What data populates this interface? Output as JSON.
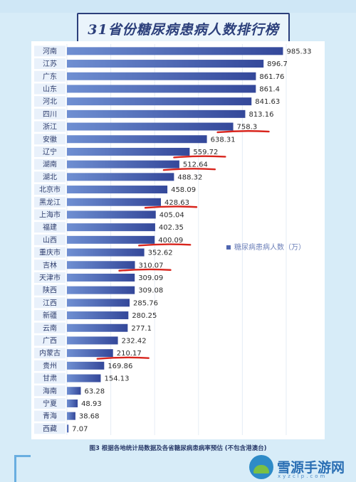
{
  "title": "31省份糖尿病患病人数排行榜",
  "legend_label": "糖尿病患病人数（万）",
  "caption": "图3  根据各地统计局数据及各省糖尿病患病率预估 (不包含港澳台)",
  "watermark": {
    "text": "雪源手游网",
    "sub": "xyzclp.com"
  },
  "colors": {
    "bar_start": "#6f8fd2",
    "bar_end": "#34489a",
    "underline": "#d8251d",
    "title": "#2c3f7b",
    "label_bg": "#e9f1fb"
  },
  "chart_data": {
    "type": "bar",
    "orientation": "horizontal",
    "series": [
      {
        "name": "糖尿病患病人数（万）"
      }
    ],
    "categories": [
      "河南",
      "江苏",
      "广东",
      "山东",
      "河北",
      "四川",
      "浙江",
      "安徽",
      "辽宁",
      "湖南",
      "湖北",
      "北京市",
      "黑龙江",
      "上海市",
      "福建",
      "山西",
      "重庆市",
      "吉林",
      "天津市",
      "陕西",
      "江西",
      "新疆",
      "云南",
      "广西",
      "内蒙古",
      "贵州",
      "甘肃",
      "海南",
      "宁夏",
      "青海",
      "西藏"
    ],
    "values": [
      985.33,
      896.7,
      861.76,
      861.4,
      841.63,
      813.16,
      758.3,
      638.31,
      559.72,
      512.64,
      488.32,
      458.09,
      428.63,
      405.04,
      402.35,
      400.09,
      352.62,
      310.07,
      309.09,
      309.08,
      285.76,
      280.25,
      277.1,
      232.42,
      210.17,
      169.86,
      154.13,
      63.28,
      48.93,
      38.68,
      7.07
    ],
    "value_labels": [
      "985.33",
      "896.7",
      "861.76",
      "861.4",
      "841.63",
      "813.16",
      "758.3",
      "638.31",
      "559.72",
      "512.64",
      "488.32",
      "458.09",
      "428.63",
      "405.04",
      "402.35",
      "400.09",
      "352.62",
      "310.07",
      "309.09",
      "309.08",
      "285.76",
      "280.25",
      "277.1",
      "232.42",
      "210.17",
      "169.86",
      "154.13",
      "63.28",
      "48.93",
      "38.68",
      "7.07"
    ],
    "highlighted": [
      "浙江",
      "辽宁",
      "湖南",
      "黑龙江",
      "山西",
      "吉林",
      "内蒙古"
    ],
    "xlim": [
      0,
      1000
    ],
    "grid": true,
    "legend_position": "right"
  }
}
